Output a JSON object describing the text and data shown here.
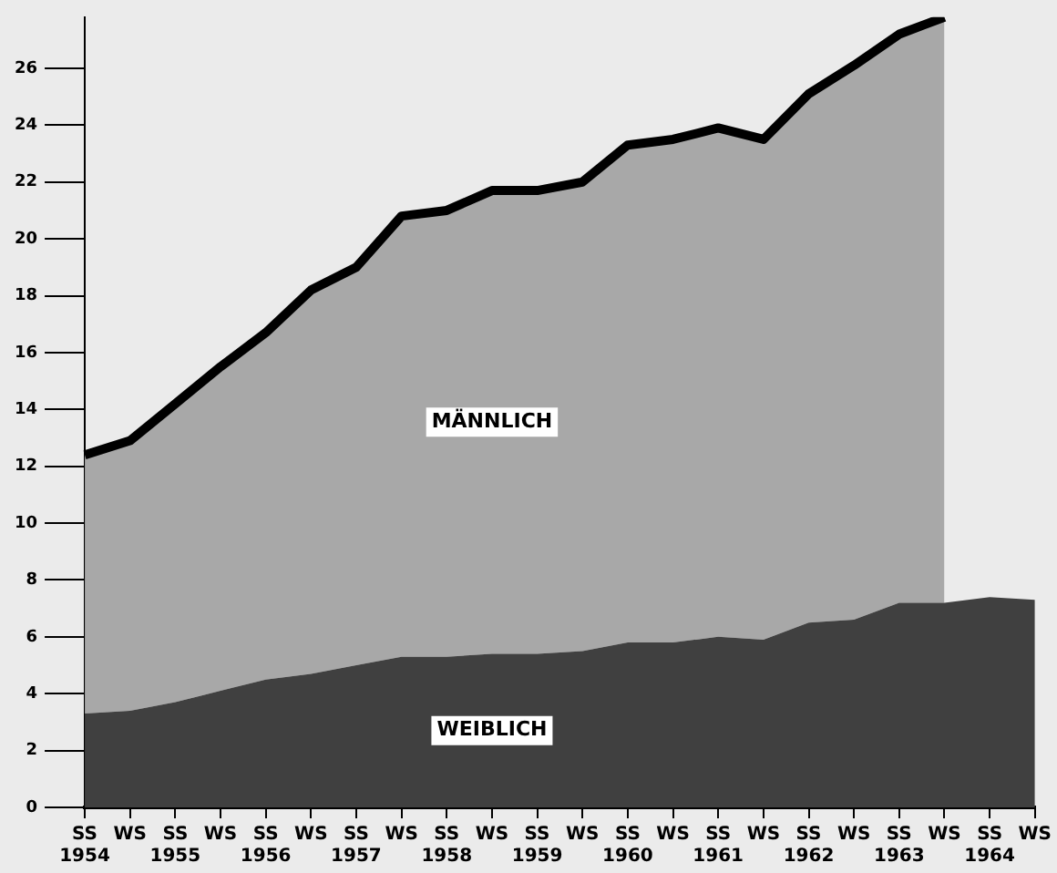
{
  "chart_data": {
    "type": "area",
    "stacked": true,
    "legend": false,
    "categories": [
      "SS\n1954",
      "WS",
      "SS\n1955",
      "WS",
      "SS\n1956",
      "WS",
      "SS\n1957",
      "WS",
      "SS\n1958",
      "WS",
      "SS\n1959",
      "WS",
      "SS\n1960",
      "WS",
      "SS\n1961",
      "WS",
      "SS\n1962",
      "WS",
      "SS\n1963",
      "WS",
      "SS\n1964",
      "WS"
    ],
    "ylim": [
      0,
      27.8
    ],
    "yticks": [
      0,
      2,
      4,
      6,
      8,
      10,
      12,
      14,
      16,
      18,
      20,
      22,
      24,
      26
    ],
    "series": [
      {
        "name": "WEIBLICH",
        "color": "#404040",
        "values": [
          3.3,
          3.4,
          3.7,
          4.1,
          4.5,
          4.7,
          5.0,
          5.3,
          5.3,
          5.4,
          5.4,
          5.5,
          5.8,
          5.8,
          6.0,
          5.9,
          6.5,
          6.6,
          7.2,
          7.2,
          7.4,
          7.3
        ]
      },
      {
        "name": "MÄNNLICH",
        "color": "#a8a8a8",
        "values": [
          9.1,
          9.5,
          10.5,
          11.4,
          12.2,
          13.5,
          14.0,
          15.5,
          15.7,
          16.3,
          16.3,
          16.5,
          17.5,
          17.7,
          17.9,
          17.6,
          18.6,
          19.5,
          20.0,
          20.6,
          null,
          null
        ]
      }
    ]
  }
}
